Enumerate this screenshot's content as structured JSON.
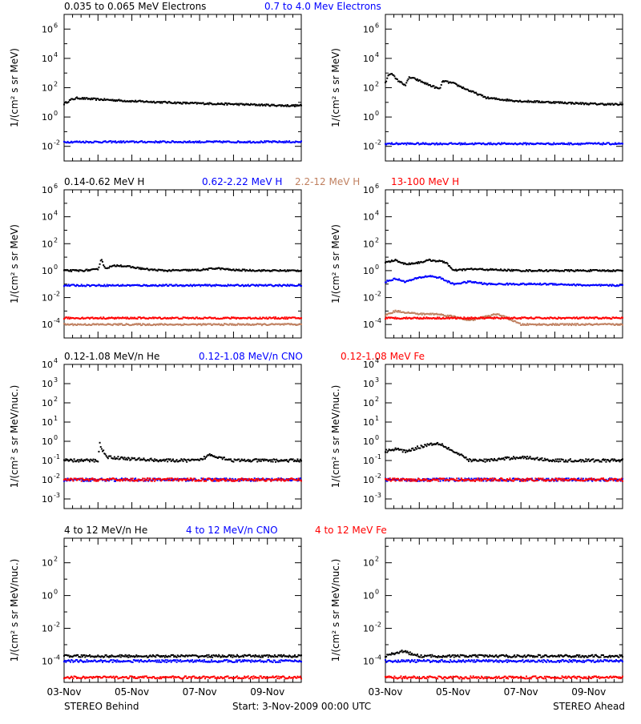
{
  "footer": {
    "left": "STEREO Behind",
    "center": "Start:  3-Nov-2009 00:00 UTC",
    "right": "STEREO Ahead"
  },
  "colors": {
    "black": "#000000",
    "blue": "#0000ff",
    "tan": "#c08060",
    "red": "#ff0000"
  },
  "chart_data": [
    {
      "type": "scatter",
      "row": "electrons",
      "side": "behind",
      "title_parts": [
        {
          "text": "0.035 to 0.065 MeV Electrons",
          "color": "#000000"
        },
        {
          "text": "0.7 to 4.0 Mev Electrons",
          "color": "#0000ff"
        }
      ],
      "ylabel": "1/(cm² s sr MeV)",
      "yscale": "log",
      "ylim_exp": [
        -3,
        7
      ],
      "ytick_exponents": [
        -2,
        0,
        2,
        4,
        6
      ],
      "xlim_days": [
        0,
        7
      ],
      "xtick_labels": [],
      "series": [
        {
          "color": "#000000",
          "x": [
            0,
            0.2,
            0.4,
            0.6,
            1.0,
            1.5,
            2.0,
            2.5,
            3.0,
            3.5,
            4.0,
            4.5,
            5.0,
            5.5,
            6.0,
            6.5,
            7.0
          ],
          "y": [
            8,
            15,
            20,
            18,
            16,
            14,
            12,
            11,
            10,
            9,
            8.5,
            8,
            7.5,
            7,
            6.5,
            6,
            6
          ]
        },
        {
          "color": "#0000ff",
          "x": [
            0,
            1,
            2,
            3,
            4,
            5,
            6,
            7
          ],
          "y": [
            0.02,
            0.02,
            0.02,
            0.02,
            0.02,
            0.02,
            0.02,
            0.02
          ]
        }
      ]
    },
    {
      "type": "scatter",
      "row": "electrons",
      "side": "ahead",
      "ylabel": "1/(cm² s sr MeV)",
      "yscale": "log",
      "ylim_exp": [
        -3,
        7
      ],
      "ytick_exponents": [
        -2,
        0,
        2,
        4,
        6
      ],
      "xlim_days": [
        0,
        7
      ],
      "xtick_labels": [],
      "series": [
        {
          "color": "#000000",
          "x": [
            0,
            0.1,
            0.2,
            0.3,
            0.5,
            0.6,
            0.7,
            0.8,
            1.0,
            1.3,
            1.6,
            1.7,
            1.8,
            2.0,
            2.5,
            3.0,
            3.5,
            4.0,
            5.0,
            6.0,
            7.0
          ],
          "y": [
            200,
            800,
            1000,
            400,
            200,
            150,
            500,
            450,
            300,
            150,
            80,
            300,
            250,
            200,
            60,
            20,
            15,
            12,
            10,
            8,
            7
          ]
        },
        {
          "color": "#0000ff",
          "x": [
            0,
            1,
            2,
            3,
            4,
            5,
            6,
            7
          ],
          "y": [
            0.015,
            0.015,
            0.015,
            0.015,
            0.015,
            0.015,
            0.015,
            0.015
          ]
        }
      ]
    },
    {
      "type": "scatter",
      "row": "protons",
      "side": "behind",
      "title_parts": [
        {
          "text": "0.14-0.62 MeV H",
          "color": "#000000"
        },
        {
          "text": "0.62-2.22 MeV H",
          "color": "#0000ff"
        },
        {
          "text": "2.2-12 MeV H",
          "color": "#c08060"
        },
        {
          "text": "13-100 MeV H",
          "color": "#ff0000"
        }
      ],
      "ylabel": "1/(cm² s sr MeV)",
      "yscale": "log",
      "ylim_exp": [
        -5,
        6
      ],
      "ytick_exponents": [
        -4,
        -2,
        0,
        2,
        4,
        6
      ],
      "xlim_days": [
        0,
        7
      ],
      "xtick_labels": [],
      "series": [
        {
          "color": "#000000",
          "x": [
            0,
            0.5,
            1.0,
            1.1,
            1.2,
            1.4,
            1.6,
            2.0,
            2.5,
            3.0,
            4.0,
            4.5,
            5.0,
            6.0,
            7.0
          ],
          "y": [
            1,
            1,
            1.2,
            8,
            1.5,
            2,
            2.5,
            1.8,
            1.2,
            1,
            1.1,
            1.5,
            1.1,
            1,
            1
          ]
        },
        {
          "color": "#0000ff",
          "x": [
            0,
            1,
            2,
            3,
            4,
            5,
            6,
            7
          ],
          "y": [
            0.08,
            0.08,
            0.08,
            0.08,
            0.08,
            0.08,
            0.08,
            0.08
          ]
        },
        {
          "color": "#c08060",
          "x": [
            0,
            1,
            2,
            3,
            4,
            5,
            6,
            7
          ],
          "y": [
            0.0001,
            0.0001,
            0.0001,
            0.0001,
            0.0001,
            0.0001,
            0.0001,
            0.0001
          ]
        },
        {
          "color": "#ff0000",
          "x": [
            0,
            1,
            2,
            3,
            4,
            5,
            6,
            7
          ],
          "y": [
            0.0003,
            0.0003,
            0.0003,
            0.0003,
            0.0003,
            0.0003,
            0.0003,
            0.0003
          ]
        }
      ]
    },
    {
      "type": "scatter",
      "row": "protons",
      "side": "ahead",
      "ylabel": "1/(cm² s sr MeV)",
      "yscale": "log",
      "ylim_exp": [
        -5,
        6
      ],
      "ytick_exponents": [
        -4,
        -2,
        0,
        2,
        4,
        6
      ],
      "xlim_days": [
        0,
        7
      ],
      "xtick_labels": [],
      "series": [
        {
          "color": "#000000",
          "x": [
            0,
            0.3,
            0.6,
            1.0,
            1.3,
            1.6,
            1.8,
            2.0,
            2.5,
            3.0,
            4.0,
            5.0,
            6.0,
            7.0
          ],
          "y": [
            4,
            6,
            3,
            4,
            6,
            5,
            4,
            1,
            1.3,
            1.2,
            1,
            1,
            1,
            1
          ]
        },
        {
          "color": "#0000ff",
          "x": [
            0,
            0.3,
            0.6,
            1.0,
            1.3,
            1.6,
            2.0,
            2.5,
            3.0,
            4.0,
            5.0,
            6.0,
            7.0
          ],
          "y": [
            0.15,
            0.25,
            0.15,
            0.3,
            0.4,
            0.3,
            0.1,
            0.15,
            0.1,
            0.1,
            0.1,
            0.08,
            0.08
          ]
        },
        {
          "color": "#c08060",
          "x": [
            0,
            0.3,
            0.6,
            1.0,
            1.5,
            2.0,
            2.5,
            3.0,
            3.3,
            3.6,
            4.0,
            5.0,
            6.0,
            7.0
          ],
          "y": [
            0.0005,
            0.001,
            0.0008,
            0.0006,
            0.0006,
            0.0004,
            0.0002,
            0.0004,
            0.0006,
            0.0003,
            0.0001,
            0.0001,
            0.0001,
            0.0001
          ]
        },
        {
          "color": "#ff0000",
          "x": [
            0,
            1,
            2,
            3,
            4,
            5,
            6,
            7
          ],
          "y": [
            0.0003,
            0.0003,
            0.0003,
            0.0003,
            0.0003,
            0.0003,
            0.0003,
            0.0003
          ]
        }
      ]
    },
    {
      "type": "scatter",
      "row": "low-ions",
      "side": "behind",
      "title_parts": [
        {
          "text": "0.12-1.08 MeV/n He",
          "color": "#000000"
        },
        {
          "text": "0.12-1.08 MeV/n CNO",
          "color": "#0000ff"
        },
        {
          "text": "0.12-1.08 MeV Fe",
          "color": "#ff0000"
        }
      ],
      "ylabel": "1/(cm² s sr MeV/nuc.)",
      "yscale": "log",
      "ylim_exp": [
        -3.5,
        4
      ],
      "ytick_exponents": [
        -3,
        -2,
        -1,
        0,
        1,
        2,
        3,
        4
      ],
      "xlim_days": [
        0,
        7
      ],
      "xtick_labels": [],
      "series": [
        {
          "color": "#000000",
          "x": [
            0,
            1,
            1.05,
            1.1,
            1.3,
            2,
            3,
            4,
            4.3,
            5,
            6,
            7
          ],
          "y": [
            0.1,
            0.1,
            0.8,
            0.4,
            0.15,
            0.12,
            0.1,
            0.1,
            0.2,
            0.1,
            0.1,
            0.1
          ]
        },
        {
          "color": "#0000ff",
          "x": [
            0,
            1,
            2,
            3,
            4,
            5,
            6,
            7
          ],
          "y": [
            0.01,
            0.01,
            0.01,
            0.01,
            0.01,
            0.01,
            0.01,
            0.01
          ]
        },
        {
          "color": "#ff0000",
          "x": [
            0,
            1,
            2,
            3,
            4,
            5,
            6,
            7
          ],
          "y": [
            0.01,
            0.01,
            0.01,
            0.01,
            0.01,
            0.01,
            0.01,
            0.01
          ]
        }
      ]
    },
    {
      "type": "scatter",
      "row": "low-ions",
      "side": "ahead",
      "ylabel": "1/(cm² s sr MeV/nuc.)",
      "yscale": "log",
      "ylim_exp": [
        -3.5,
        4
      ],
      "ytick_exponents": [
        -3,
        -2,
        -1,
        0,
        1,
        2,
        3,
        4
      ],
      "xlim_days": [
        0,
        7
      ],
      "xtick_labels": [],
      "series": [
        {
          "color": "#000000",
          "x": [
            0,
            0.3,
            0.6,
            1.0,
            1.3,
            1.6,
            2.0,
            2.5,
            3.0,
            4.0,
            5.0,
            6.0,
            7.0
          ],
          "y": [
            0.3,
            0.4,
            0.3,
            0.5,
            0.7,
            0.8,
            0.3,
            0.1,
            0.1,
            0.15,
            0.1,
            0.1,
            0.1
          ]
        },
        {
          "color": "#0000ff",
          "x": [
            0,
            1,
            2,
            3,
            4,
            5,
            6,
            7
          ],
          "y": [
            0.01,
            0.01,
            0.01,
            0.01,
            0.01,
            0.01,
            0.01,
            0.01
          ]
        },
        {
          "color": "#ff0000",
          "x": [
            0,
            1,
            2,
            3,
            4,
            5,
            6,
            7
          ],
          "y": [
            0.01,
            0.01,
            0.01,
            0.01,
            0.01,
            0.01,
            0.01,
            0.01
          ]
        }
      ]
    },
    {
      "type": "scatter",
      "row": "high-ions",
      "side": "behind",
      "title_parts": [
        {
          "text": "4 to 12 MeV/n He",
          "color": "#000000"
        },
        {
          "text": "4 to 12 MeV/n CNO",
          "color": "#0000ff"
        },
        {
          "text": "4 to 12 MeV Fe",
          "color": "#ff0000"
        }
      ],
      "ylabel": "1/(cm² s sr MeV/nuc.)",
      "yscale": "log",
      "ylim_exp": [
        -5.3,
        3.5
      ],
      "ytick_exponents": [
        -4,
        -2,
        0,
        2
      ],
      "xlim_days": [
        0,
        7
      ],
      "xtick_labels": [
        "03-Nov",
        "05-Nov",
        "07-Nov",
        "09-Nov"
      ],
      "series": [
        {
          "color": "#000000",
          "x": [
            0,
            1,
            2,
            3,
            4,
            5,
            6,
            7
          ],
          "y": [
            0.0002,
            0.0002,
            0.0002,
            0.0002,
            0.0002,
            0.0002,
            0.0002,
            0.0002
          ]
        },
        {
          "color": "#0000ff",
          "x": [
            0,
            1,
            2,
            3,
            4,
            5,
            6,
            7
          ],
          "y": [
            0.0001,
            0.0001,
            0.0001,
            0.0001,
            0.0001,
            0.0001,
            0.0001,
            0.0001
          ]
        },
        {
          "color": "#ff0000",
          "x": [
            0,
            1,
            2,
            3,
            4,
            5,
            6,
            7
          ],
          "y": [
            1e-05,
            1e-05,
            1e-05,
            1e-05,
            1e-05,
            1e-05,
            1e-05,
            1e-05
          ]
        }
      ]
    },
    {
      "type": "scatter",
      "row": "high-ions",
      "side": "ahead",
      "ylabel": "1/(cm² s sr MeV/nuc.)",
      "yscale": "log",
      "ylim_exp": [
        -5.3,
        3.5
      ],
      "ytick_exponents": [
        -4,
        -2,
        0,
        2
      ],
      "xlim_days": [
        0,
        7
      ],
      "xtick_labels": [
        "03-Nov",
        "05-Nov",
        "07-Nov",
        "09-Nov"
      ],
      "series": [
        {
          "color": "#000000",
          "x": [
            0,
            0.5,
            1,
            2,
            3,
            4,
            5,
            6,
            7
          ],
          "y": [
            0.0002,
            0.0004,
            0.0002,
            0.0002,
            0.0002,
            0.0002,
            0.0002,
            0.0002,
            0.0002
          ]
        },
        {
          "color": "#0000ff",
          "x": [
            0,
            1,
            2,
            3,
            4,
            5,
            6,
            7
          ],
          "y": [
            0.0001,
            0.0001,
            0.0001,
            0.0001,
            0.0001,
            0.0001,
            0.0001,
            0.0001
          ]
        },
        {
          "color": "#ff0000",
          "x": [
            0,
            1,
            2,
            3,
            4,
            5,
            6,
            7
          ],
          "y": [
            1e-05,
            1e-05,
            1e-05,
            1e-05,
            1e-05,
            1e-05,
            1e-05,
            1e-05
          ]
        }
      ]
    }
  ]
}
